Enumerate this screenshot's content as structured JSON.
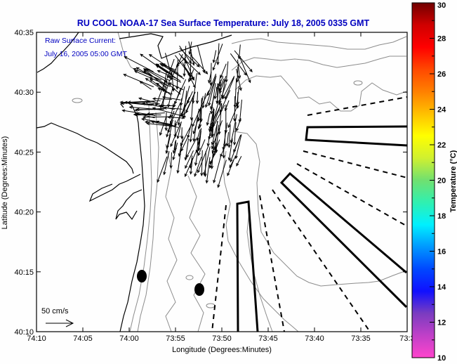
{
  "title": "RU COOL  NOAA-17  Sea Surface Temperature:  July 18, 2005 0335 GMT",
  "legend": {
    "line1": "Raw Surface Current:",
    "line2": "July 16, 2005 05:00 GMT",
    "scale_label": "50 cm/s"
  },
  "axes": {
    "xlabel": "Longitude (Degrees:Minutes)",
    "ylabel": "Latitude (Degrees:Minutes)",
    "xticks": [
      "74:10",
      "74:05",
      "74:00",
      "73:55",
      "73:50",
      "73:45",
      "73:40",
      "73:35",
      "73:3"
    ],
    "yticks": [
      "40:35",
      "40:30",
      "40:25",
      "40:20",
      "40:15",
      "40:10"
    ]
  },
  "colorbar": {
    "label": "Temperature (°C)",
    "ticks": [
      "30",
      "28",
      "26",
      "24",
      "22",
      "20",
      "18",
      "16",
      "14",
      "12",
      "10"
    ],
    "range": [
      10,
      30
    ],
    "colors": [
      "#ff44cc",
      "#c040c8",
      "#7a3cc0",
      "#1010ff",
      "#0048ff",
      "#0098ff",
      "#00f0ff",
      "#30f0b0",
      "#70e070",
      "#d0f030",
      "#ffff00",
      "#ffc000",
      "#ff8000",
      "#ff4800",
      "#ff0000",
      "#d00000",
      "#700000"
    ]
  }
}
